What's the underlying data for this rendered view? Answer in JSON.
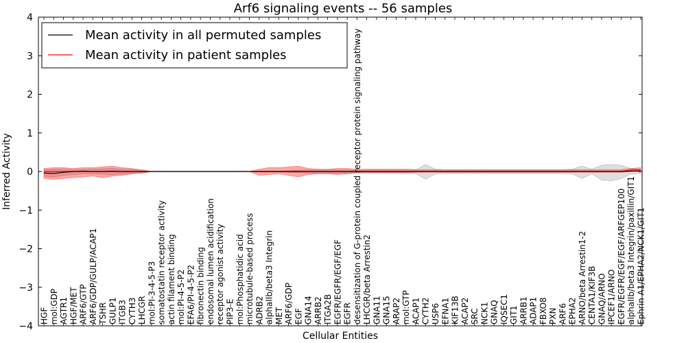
{
  "chart_data": {
    "type": "line",
    "title": "Arf6 signaling events -- 56 samples",
    "xlabel": "Cellular Entities",
    "ylabel": "Inferred Activity",
    "ylim": [
      -4,
      4
    ],
    "yticks": [
      "−4",
      "−3",
      "−2",
      "−1",
      "0",
      "1",
      "2",
      "3",
      "4"
    ],
    "yticks_values": [
      -4,
      -3,
      -2,
      -1,
      0,
      1,
      2,
      3,
      4
    ],
    "legend_position": "top-left",
    "categories": [
      "HGF",
      "mol:GDP",
      "AGTR1",
      "HGF/MET",
      "ARF6/GTP",
      "ARF6/GDP/GULP/ACAP1",
      "TSHR",
      "GULP1",
      "ITGB3",
      "CYTH3",
      "LHCGR",
      "mol:PI-3-4-5-P3",
      "somatostatin receptor activity",
      "actin filament binding",
      "mol:PI-4-5-P2",
      "EFA6/PI-4-5-P2",
      "fibronectin binding",
      "endosomal lumen acidification",
      "receptor agonist activity",
      "PIP3-E",
      "mol:Phosphatidic acid",
      "microtubule-based process",
      "ADRB2",
      "alphaIIb/beta3 Integrin",
      "MET",
      "ARF6/GDP",
      "EGF",
      "GNA14",
      "ARRB2",
      "ITGA2B",
      "EGFR/EGFR/EGF/EGF",
      "EGFR",
      "desensitization of G-protein coupled receptor protein signaling pathway",
      "LHCGR/beta Arrestin2",
      "GNA11",
      "GNA15",
      "ARAP2",
      "mol:GTP",
      "ACAP1",
      "CYTH2",
      "USP6",
      "EFNA1",
      "KIF13B",
      "ACAP2",
      "SRC",
      "NCK1",
      "GNAQ",
      "IQSEC1",
      "GIT1",
      "ARRB1",
      "ADAP1",
      "FBXO8",
      "PXN",
      "ARF6",
      "EPHA2",
      "ARNO/beta Arrestin1-2",
      "CENTA1/KIF3B",
      "GNAQ/ARNO",
      "IPCEF1/ARNO",
      "EGFR/EGFR/EGF/EGF/ARFGEP100",
      "alphaIIb/beta3 Integrin/paxillin/GIT1",
      "Ephrin A1/EPHA2/NCK1/GIT1"
    ],
    "series": [
      {
        "name": "Mean activity in all permuted samples",
        "color": "#000000",
        "values": [
          -0.04,
          -0.05,
          -0.02,
          0.0,
          0.01,
          0.0,
          0.0,
          0.01,
          0.0,
          0.0,
          0.0,
          0.0,
          0.0,
          0.0,
          0.0,
          0.0,
          0.0,
          0.0,
          0.0,
          0.0,
          0.0,
          0.0,
          0.0,
          0.0,
          0.0,
          0.0,
          0.0,
          0.0,
          0.0,
          0.0,
          0.0,
          0.0,
          0.0,
          0.0,
          0.0,
          0.0,
          0.0,
          0.0,
          0.0,
          0.0,
          0.0,
          0.0,
          0.0,
          0.0,
          0.0,
          0.0,
          0.0,
          0.0,
          0.0,
          0.0,
          0.0,
          0.0,
          0.0,
          0.0,
          0.0,
          0.0,
          0.0,
          0.0,
          0.0,
          0.0,
          0.01,
          0.01
        ],
        "band_upper": [
          0.04,
          0.06,
          0.06,
          0.05,
          0.06,
          0.06,
          0.07,
          0.08,
          0.06,
          0.05,
          0.05,
          0.0,
          0.0,
          0.0,
          0.0,
          0.0,
          0.0,
          0.0,
          0.0,
          0.0,
          0.0,
          0.0,
          0.01,
          0.01,
          0.01,
          0.02,
          0.03,
          0.04,
          0.04,
          0.04,
          0.04,
          0.04,
          0.03,
          0.04,
          0.04,
          0.04,
          0.04,
          0.04,
          0.04,
          0.18,
          0.06,
          0.05,
          0.05,
          0.05,
          0.05,
          0.05,
          0.05,
          0.05,
          0.05,
          0.05,
          0.05,
          0.05,
          0.05,
          0.05,
          0.06,
          0.14,
          0.06,
          0.16,
          0.18,
          0.16,
          0.08,
          0.06
        ],
        "band_lower": [
          -0.12,
          -0.14,
          -0.1,
          -0.08,
          -0.06,
          -0.06,
          -0.07,
          -0.08,
          -0.06,
          -0.05,
          -0.05,
          0.0,
          0.0,
          0.0,
          0.0,
          0.0,
          0.0,
          0.0,
          0.0,
          0.0,
          0.0,
          0.0,
          -0.01,
          -0.01,
          -0.01,
          -0.02,
          -0.03,
          -0.04,
          -0.04,
          -0.04,
          -0.04,
          -0.04,
          -0.03,
          -0.04,
          -0.04,
          -0.04,
          -0.04,
          -0.04,
          -0.05,
          -0.2,
          -0.06,
          -0.05,
          -0.05,
          -0.05,
          -0.05,
          -0.05,
          -0.05,
          -0.05,
          -0.05,
          -0.05,
          -0.05,
          -0.05,
          -0.05,
          -0.05,
          -0.06,
          -0.18,
          -0.06,
          -0.22,
          -0.24,
          -0.18,
          -0.06,
          -0.05
        ]
      },
      {
        "name": "Mean activity in patient samples",
        "color": "#ff0000",
        "values": [
          0.0,
          0.0,
          0.0,
          0.0,
          0.0,
          0.0,
          0.0,
          0.0,
          0.0,
          0.0,
          0.0,
          0.0,
          0.0,
          0.0,
          0.0,
          0.0,
          0.0,
          0.0,
          0.0,
          0.0,
          0.0,
          0.0,
          0.0,
          0.0,
          0.0,
          0.0,
          0.0,
          0.0,
          0.0,
          0.0,
          0.0,
          0.0,
          0.0,
          0.0,
          0.0,
          0.0,
          0.0,
          0.0,
          0.0,
          0.0,
          0.0,
          0.0,
          0.0,
          0.0,
          0.0,
          0.0,
          0.0,
          0.0,
          0.0,
          0.0,
          0.0,
          0.0,
          0.0,
          0.0,
          0.0,
          0.0,
          0.0,
          0.0,
          0.0,
          0.0,
          0.04,
          0.04
        ],
        "band_upper": [
          0.08,
          0.1,
          0.1,
          0.08,
          0.1,
          0.1,
          0.12,
          0.14,
          0.1,
          0.08,
          0.04,
          0.0,
          0.0,
          0.0,
          0.0,
          0.0,
          0.0,
          0.0,
          0.0,
          0.0,
          0.0,
          0.0,
          0.06,
          0.1,
          0.1,
          0.12,
          0.14,
          0.08,
          0.06,
          0.06,
          0.08,
          0.08,
          0.06,
          0.06,
          0.06,
          0.06,
          0.06,
          0.06,
          0.05,
          0.05,
          0.05,
          0.04,
          0.04,
          0.04,
          0.04,
          0.04,
          0.04,
          0.04,
          0.04,
          0.04,
          0.04,
          0.04,
          0.04,
          0.04,
          0.05,
          0.05,
          0.05,
          0.05,
          0.05,
          0.05,
          0.08,
          0.1
        ],
        "band_lower": [
          -0.18,
          -0.2,
          -0.18,
          -0.16,
          -0.14,
          -0.12,
          -0.16,
          -0.12,
          -0.1,
          -0.06,
          -0.04,
          0.0,
          0.0,
          0.0,
          0.0,
          0.0,
          0.0,
          0.0,
          0.0,
          0.0,
          0.0,
          0.0,
          -0.1,
          -0.08,
          -0.06,
          -0.1,
          -0.14,
          -0.08,
          -0.06,
          -0.06,
          -0.08,
          -0.06,
          -0.04,
          -0.04,
          -0.03,
          -0.03,
          -0.03,
          -0.03,
          -0.02,
          -0.02,
          -0.02,
          -0.02,
          -0.02,
          -0.02,
          -0.02,
          -0.02,
          -0.02,
          -0.02,
          -0.02,
          -0.02,
          -0.02,
          -0.02,
          -0.02,
          -0.02,
          -0.02,
          -0.02,
          -0.02,
          -0.02,
          -0.02,
          -0.02,
          0.0,
          0.02
        ]
      }
    ]
  }
}
